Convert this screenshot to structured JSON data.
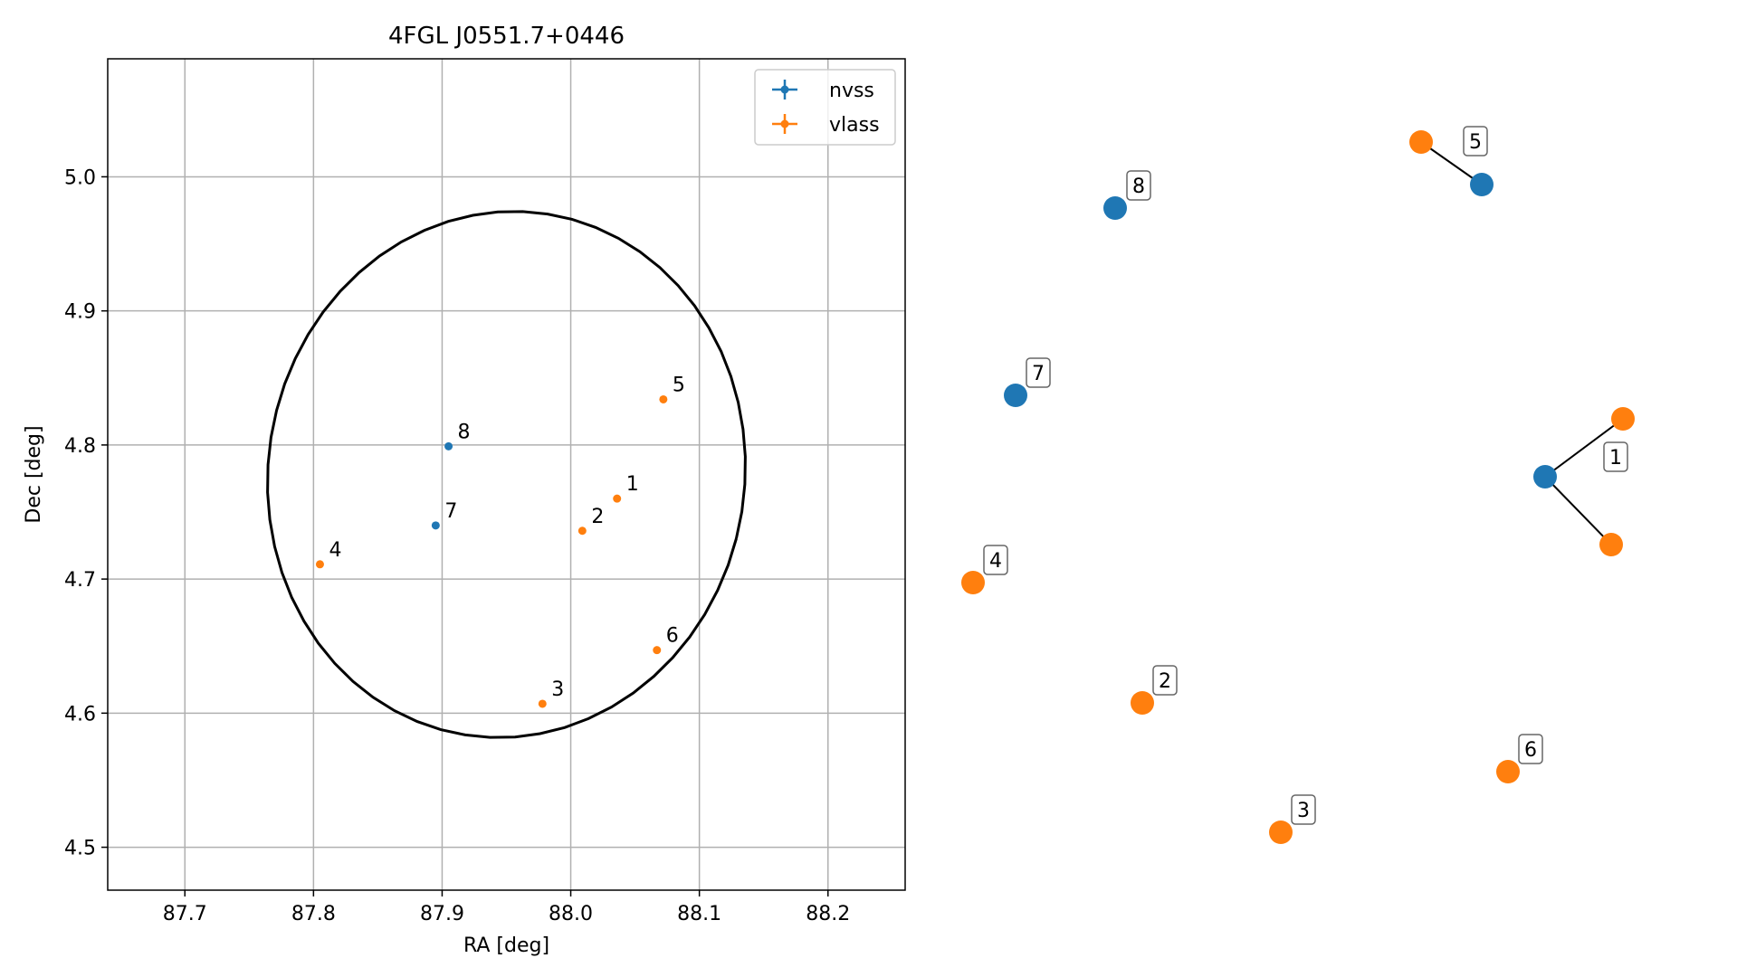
{
  "chart_data": [
    {
      "type": "scatter",
      "title": "4FGL J0551.7+0446",
      "xlabel": "RA [deg]",
      "ylabel": "Dec [deg]",
      "xlim": [
        87.64,
        88.26
      ],
      "ylim": [
        4.468,
        5.088
      ],
      "xticks": [
        "87.7",
        "87.8",
        "87.9",
        "88.0",
        "88.1",
        "88.2"
      ],
      "xtick_values": [
        87.7,
        87.8,
        87.9,
        88.0,
        88.1,
        88.2
      ],
      "yticks": [
        "4.5",
        "4.6",
        "4.7",
        "4.8",
        "4.9",
        "5.0"
      ],
      "ytick_values": [
        4.5,
        4.6,
        4.7,
        4.8,
        4.9,
        5.0
      ],
      "grid": true,
      "legend_position": "top-right",
      "colors": {
        "nvss": "#1f77b4",
        "vlass": "#ff7f0e"
      },
      "series": [
        {
          "name": "nvss",
          "points": [
            {
              "label": "7",
              "x": 87.895,
              "y": 4.74
            },
            {
              "label": "8",
              "x": 87.905,
              "y": 4.799
            }
          ]
        },
        {
          "name": "vlass",
          "points": [
            {
              "label": "1",
              "x": 88.036,
              "y": 4.76
            },
            {
              "label": "2",
              "x": 88.009,
              "y": 4.736
            },
            {
              "label": "3",
              "x": 87.978,
              "y": 4.607
            },
            {
              "label": "4",
              "x": 87.805,
              "y": 4.711
            },
            {
              "label": "5",
              "x": 88.072,
              "y": 4.834
            },
            {
              "label": "6",
              "x": 88.067,
              "y": 4.647
            }
          ]
        }
      ],
      "ellipse": {
        "center": [
          87.95,
          4.778
        ],
        "semi_axis_ra": 0.185,
        "semi_axis_dec": 0.197,
        "angle_deg": -15
      }
    },
    {
      "type": "network",
      "nodes": [
        {
          "label": "1",
          "group": "nvss",
          "box_label": true
        },
        {
          "label": "",
          "group": "vlass"
        },
        {
          "label": "",
          "group": "vlass"
        },
        {
          "label": "2",
          "group": "vlass"
        },
        {
          "label": "3",
          "group": "vlass"
        },
        {
          "label": "4",
          "group": "vlass"
        },
        {
          "label": "5",
          "group": "vlass"
        },
        {
          "label": "",
          "group": "nvss"
        },
        {
          "label": "6",
          "group": "vlass"
        },
        {
          "label": "7",
          "group": "nvss"
        },
        {
          "label": "8",
          "group": "nvss"
        }
      ],
      "edges": [
        [
          0,
          1
        ],
        [
          0,
          2
        ],
        [
          6,
          7
        ]
      ]
    }
  ]
}
